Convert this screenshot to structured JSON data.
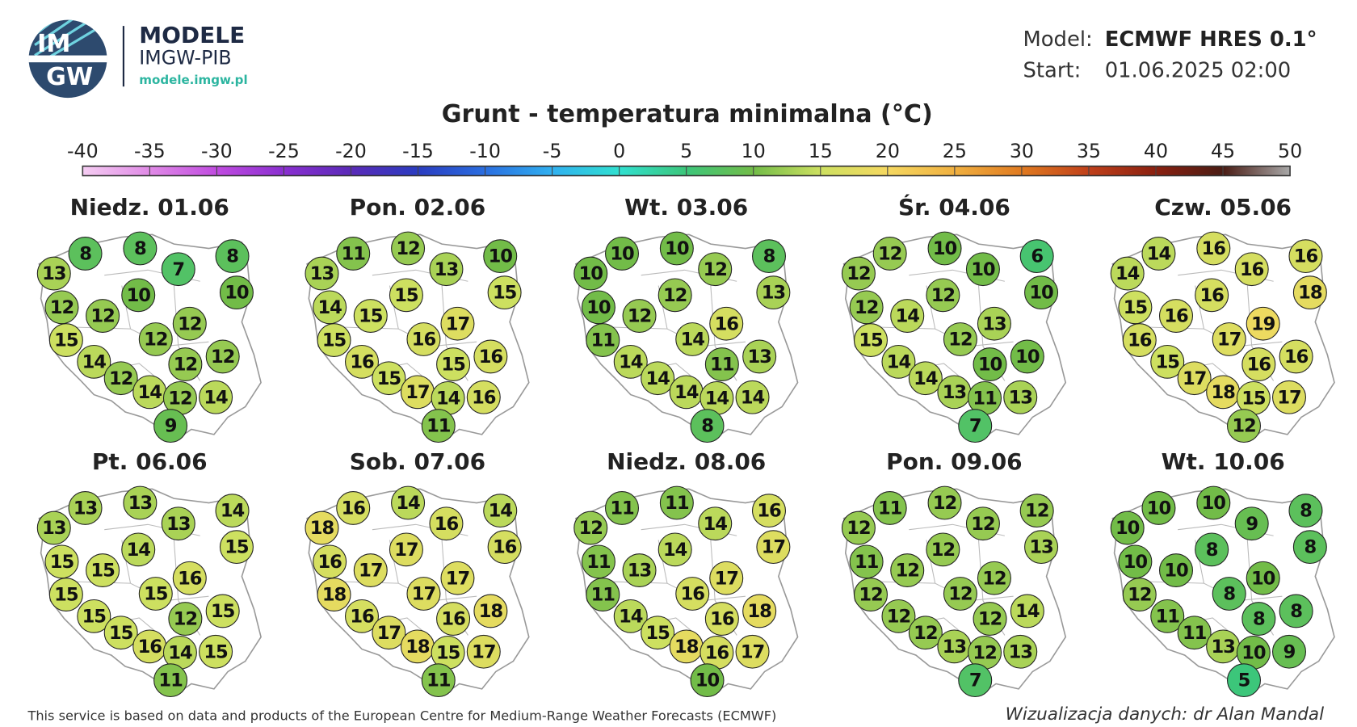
{
  "header": {
    "logo_top": "IM",
    "logo_bottom": "GW",
    "brand": "MODELE",
    "org": "IMGW-PIB",
    "url": "modele.imgw.pl",
    "model_label": "Model:",
    "model": "ECMWF HRES 0.1°",
    "start_label": "Start:",
    "start": "01.06.2025 02:00"
  },
  "title": "Grunt - temperatura minimalna (°C)",
  "legend": {
    "ticks": [
      -40,
      -35,
      -30,
      -25,
      -20,
      -15,
      -10,
      -5,
      0,
      5,
      10,
      15,
      20,
      25,
      30,
      35,
      40,
      45,
      50
    ],
    "colors": [
      "#f5cdf2",
      "#e08ae6",
      "#c04be0",
      "#8a2fd0",
      "#5a2ab8",
      "#2a3cc0",
      "#2a6ee0",
      "#30b0f0",
      "#30e0d0",
      "#3cc67a",
      "#72bc48",
      "#cde060",
      "#f5d860",
      "#f0b040",
      "#e07a20",
      "#c0401a",
      "#8a2010",
      "#4a1c14",
      "#a8a8a8"
    ]
  },
  "maps": [
    {
      "title": "Niedz. 01.06",
      "values": [
        13,
        8,
        8,
        7,
        8,
        10,
        10,
        12,
        12,
        12,
        15,
        12,
        14,
        12,
        12,
        12,
        14,
        12,
        14,
        9
      ]
    },
    {
      "title": "Pon. 02.06",
      "values": [
        13,
        11,
        12,
        13,
        10,
        15,
        15,
        14,
        15,
        17,
        15,
        16,
        16,
        15,
        16,
        15,
        17,
        14,
        16,
        11
      ]
    },
    {
      "title": "Wt. 03.06",
      "values": [
        10,
        10,
        10,
        12,
        8,
        13,
        12,
        10,
        12,
        16,
        11,
        14,
        14,
        11,
        13,
        14,
        14,
        14,
        14,
        8
      ]
    },
    {
      "title": "Śr. 04.06",
      "values": [
        12,
        12,
        10,
        10,
        6,
        10,
        12,
        12,
        14,
        13,
        15,
        12,
        14,
        10,
        10,
        14,
        13,
        11,
        13,
        7
      ]
    },
    {
      "title": "Czw. 05.06",
      "values": [
        14,
        14,
        16,
        16,
        16,
        18,
        16,
        15,
        16,
        19,
        16,
        17,
        15,
        16,
        16,
        17,
        18,
        15,
        17,
        12
      ]
    },
    {
      "title": "Pt. 06.06",
      "values": [
        13,
        13,
        13,
        13,
        14,
        15,
        14,
        15,
        15,
        16,
        15,
        15,
        15,
        12,
        15,
        15,
        16,
        14,
        15,
        11
      ]
    },
    {
      "title": "Sob. 07.06",
      "values": [
        18,
        16,
        14,
        16,
        14,
        16,
        17,
        16,
        17,
        17,
        18,
        17,
        16,
        16,
        18,
        17,
        18,
        15,
        17,
        11
      ]
    },
    {
      "title": "Niedz. 08.06",
      "values": [
        12,
        11,
        11,
        14,
        16,
        17,
        14,
        11,
        13,
        17,
        11,
        16,
        14,
        16,
        18,
        15,
        18,
        16,
        17,
        10
      ]
    },
    {
      "title": "Pon. 09.06",
      "values": [
        12,
        11,
        12,
        12,
        12,
        13,
        12,
        11,
        12,
        12,
        12,
        12,
        12,
        12,
        14,
        12,
        13,
        12,
        13,
        7
      ]
    },
    {
      "title": "Wt. 10.06",
      "values": [
        10,
        10,
        10,
        9,
        8,
        8,
        8,
        10,
        10,
        10,
        12,
        8,
        11,
        8,
        8,
        11,
        13,
        10,
        9,
        5
      ]
    }
  ],
  "footer": {
    "source": "This service is based on data and products of the European Centre for Medium-Range Weather Forecasts (ECMWF)",
    "credit": "Wizualizacja danych: dr Alan Mandal"
  }
}
